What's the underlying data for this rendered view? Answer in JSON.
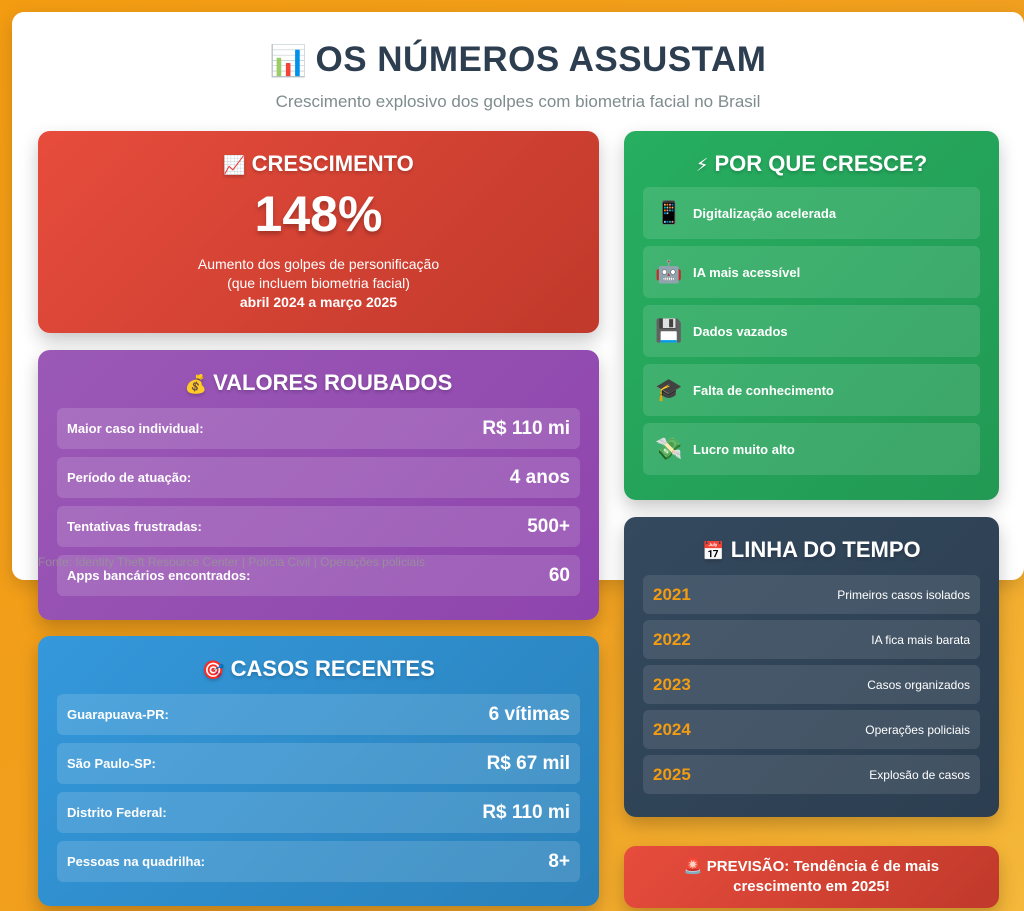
{
  "header": {
    "icon": "bar-chart-icon",
    "title": "OS NÚMEROS ASSUSTAM",
    "subtitle": "Crescimento explosivo dos golpes com biometria facial no Brasil",
    "source": "Fonte: Identity Theft Resource Center | Polícia Civil | Operações policiais"
  },
  "growth": {
    "icon": "chart-increasing-icon",
    "title": "CRESCIMENTO",
    "value": "148%",
    "desc_line1": "Aumento dos golpes de personificação",
    "desc_line2": "(que incluem biometria facial)",
    "period": "abril 2024 a março 2025",
    "color": "#e74c3c"
  },
  "values": {
    "icon": "money-bag-icon",
    "title": "VALORES ROUBADOS",
    "color": "#9b59b6",
    "rows": [
      {
        "label": "Maior caso individual:",
        "value": "R$ 110 mi"
      },
      {
        "label": "Período de atuação:",
        "value": "4 anos"
      },
      {
        "label": "Tentativas frustradas:",
        "value": "500+"
      },
      {
        "label": "Apps bancários encontrados:",
        "value": "60"
      }
    ]
  },
  "cases": {
    "icon": "target-icon",
    "title": "CASOS RECENTES",
    "color": "#3498db",
    "rows": [
      {
        "label": "Guarapuava-PR:",
        "value": "6 vítimas"
      },
      {
        "label": "São Paulo-SP:",
        "value": "R$ 67 mil"
      },
      {
        "label": "Distrito Federal:",
        "value": "R$ 110 mi"
      },
      {
        "label": "Pessoas na quadrilha:",
        "value": "8+"
      }
    ]
  },
  "why": {
    "icon": "lightning-icon",
    "title": "POR QUE CRESCE?",
    "color": "#27ae60",
    "items": [
      {
        "icon": "mobile-phone-icon",
        "glyph": "📱",
        "label": "Digitalização acelerada"
      },
      {
        "icon": "robot-icon",
        "glyph": "🤖",
        "label": "IA mais acessível"
      },
      {
        "icon": "floppy-disk-icon",
        "glyph": "💾",
        "label": "Dados vazados"
      },
      {
        "icon": "graduation-cap-icon",
        "glyph": "🎓",
        "label": "Falta de conhecimento"
      },
      {
        "icon": "flying-money-icon",
        "glyph": "💸",
        "label": "Lucro muito alto"
      }
    ]
  },
  "timeline": {
    "icon": "calendar-icon",
    "title": "LINHA DO TEMPO",
    "color": "#34495e",
    "accent": "#f39c12",
    "rows": [
      {
        "year": "2021",
        "event": "Primeiros casos isolados"
      },
      {
        "year": "2022",
        "event": "IA fica mais barata"
      },
      {
        "year": "2023",
        "event": "Casos organizados"
      },
      {
        "year": "2024",
        "event": "Operações policiais"
      },
      {
        "year": "2025",
        "event": "Explosão de casos"
      }
    ]
  },
  "forecast": {
    "icon": "siren-icon",
    "line1": "PREVISÃO: Tendência é de mais",
    "line2": "crescimento em 2025!"
  }
}
